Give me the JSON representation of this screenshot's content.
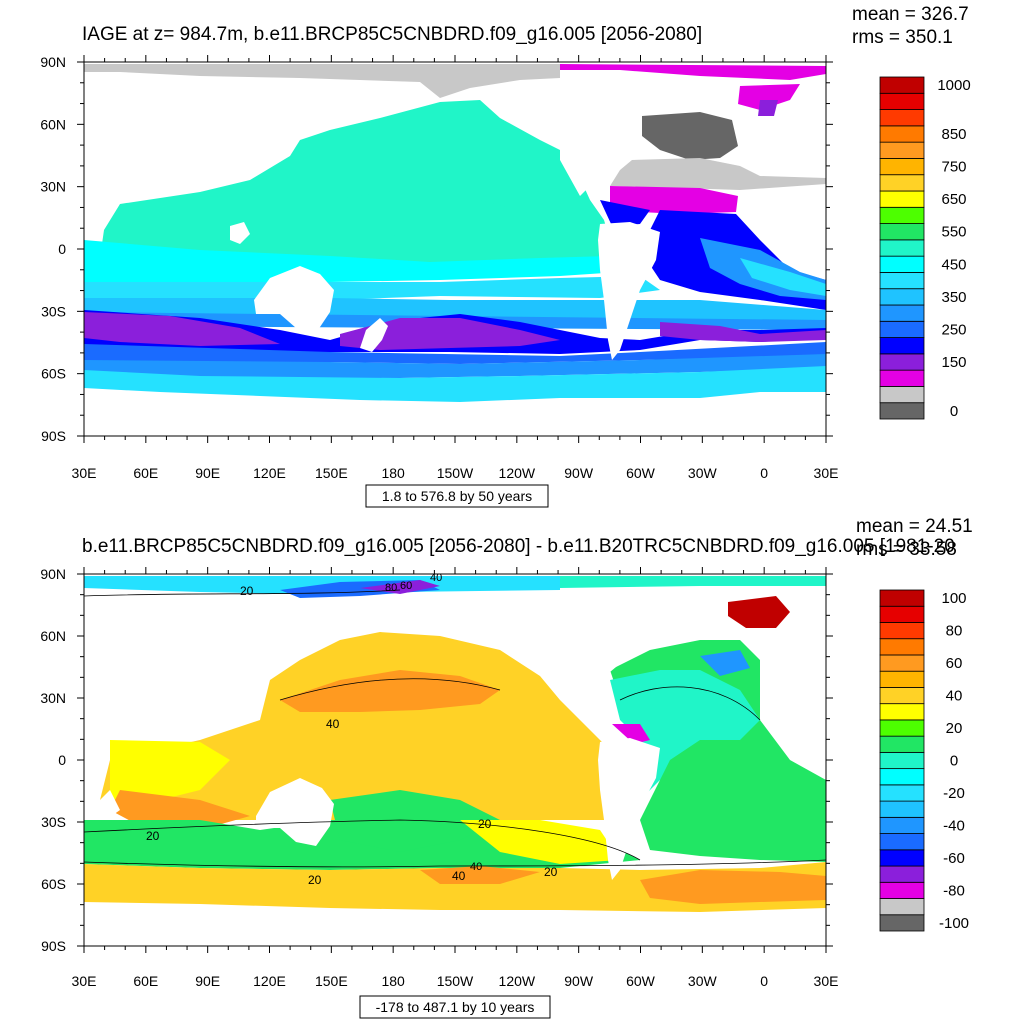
{
  "axes": {
    "lon_ticks": [
      "30E",
      "60E",
      "90E",
      "120E",
      "150E",
      "180",
      "150W",
      "120W",
      "90W",
      "60W",
      "30W",
      "0",
      "30E"
    ],
    "lat_ticks": [
      "90N",
      "60N",
      "30N",
      "0",
      "30S",
      "60S",
      "90S"
    ]
  },
  "panels": [
    {
      "id": "top",
      "title": "IAGE at z= 984.7m, b.e11.BRCP85C5CNBDRD.f09_g16.005 [2056-2080]",
      "mean": "mean = 326.7",
      "rms": "rms = 350.1",
      "range_label": "1.8 to 576.8 by 50 years",
      "colorbar": {
        "colors": [
          "#666666",
          "#c8c8c8",
          "#e400e4",
          "#8b1fdb",
          "#0000ff",
          "#1a6bff",
          "#1f96ff",
          "#1fc3ff",
          "#25e1ff",
          "#00ffff",
          "#20f5c8",
          "#21e664",
          "#4dff00",
          "#ffff00",
          "#ffd226",
          "#ffb400",
          "#ff9a20",
          "#ff7a00",
          "#ff3a00",
          "#e60000",
          "#c00000"
        ],
        "labels": [
          {
            "text": "1000",
            "index": 20
          },
          {
            "text": "850",
            "index": 17
          },
          {
            "text": "750",
            "index": 15
          },
          {
            "text": "650",
            "index": 13
          },
          {
            "text": "550",
            "index": 11
          },
          {
            "text": "450",
            "index": 9
          },
          {
            "text": "350",
            "index": 7
          },
          {
            "text": "250",
            "index": 5
          },
          {
            "text": "150",
            "index": 3
          },
          {
            "text": "0",
            "index": 0
          }
        ]
      }
    },
    {
      "id": "bottom",
      "title": "b.e11.BRCP85C5CNBDRD.f09_g16.005 [2056-2080] - b.e11.B20TRC5CNBDRD.f09_g16.005 [1981-20",
      "mean": "mean = 24.51",
      "rms": "rms = 33.58",
      "range_label": "-178 to 487.1 by 10 years",
      "contour_labels": [
        "20",
        "40",
        "40",
        "20",
        "20",
        "20",
        "40",
        "20",
        "40",
        "60",
        "80"
      ],
      "colorbar": {
        "colors": [
          "#666666",
          "#c8c8c8",
          "#e400e4",
          "#8b1fdb",
          "#0000ff",
          "#1a6bff",
          "#1f96ff",
          "#1fc3ff",
          "#25e1ff",
          "#00ffff",
          "#20f5c8",
          "#21e664",
          "#4dff00",
          "#ffff00",
          "#ffd226",
          "#ffb400",
          "#ff9a20",
          "#ff7a00",
          "#ff3a00",
          "#e60000",
          "#c00000"
        ],
        "labels": [
          {
            "text": "100",
            "index": 20
          },
          {
            "text": "80",
            "index": 18
          },
          {
            "text": "60",
            "index": 16
          },
          {
            "text": "40",
            "index": 14
          },
          {
            "text": "20",
            "index": 12
          },
          {
            "text": "0",
            "index": 10
          },
          {
            "text": "-20",
            "index": 8
          },
          {
            "text": "-40",
            "index": 6
          },
          {
            "text": "-60",
            "index": 4
          },
          {
            "text": "-80",
            "index": 2
          },
          {
            "text": "-100",
            "index": 0
          }
        ]
      }
    }
  ]
}
